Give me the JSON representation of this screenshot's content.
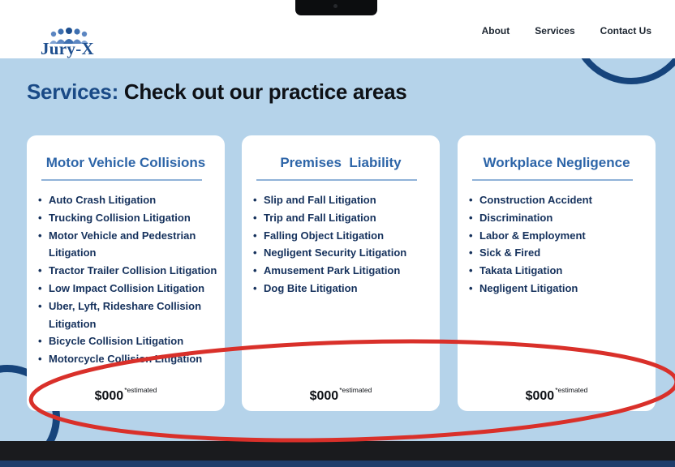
{
  "brand": {
    "name": "Jury-X"
  },
  "nav": [
    {
      "label": "About"
    },
    {
      "label": "Services"
    },
    {
      "label": "Contact Us"
    }
  ],
  "page": {
    "title_accent": "Services:",
    "title_rest": " Check out our practice areas"
  },
  "cards": [
    {
      "title": "Motor Vehicle Collisions",
      "items": [
        "Auto Crash Litigation",
        "Trucking Collision Litigation",
        "Motor Vehicle and Pedestrian Litigation",
        "Tractor Trailer Collision Litigation",
        "Low Impact Collision Litigation",
        "Uber, Lyft, Rideshare Collision Litigation",
        "Bicycle Collision Litigation",
        "Motorcycle Collision Litigation"
      ],
      "price": "$000",
      "price_note": "*estimated"
    },
    {
      "title": "Premises  Liability",
      "items": [
        "Slip and Fall Litigation",
        "Trip and Fall Litigation",
        "Falling Object Litigation",
        "Negligent Security Litigation",
        "Amusement Park Litigation",
        "Dog Bite Litigation"
      ],
      "price": "$000",
      "price_note": "*estimated"
    },
    {
      "title": "Workplace Negligence",
      "items": [
        "Construction Accident",
        "Discrimination",
        "Labor & Employment",
        "Sick & Fired",
        "Takata Litigation",
        "Negligent Litigation"
      ],
      "price": "$000",
      "price_note": "*estimated"
    }
  ],
  "colors": {
    "page_bg": "#b5d3ea",
    "brand_blue": "#1a4a86",
    "card_title": "#2d65a8",
    "annotation": "#d9302a"
  }
}
